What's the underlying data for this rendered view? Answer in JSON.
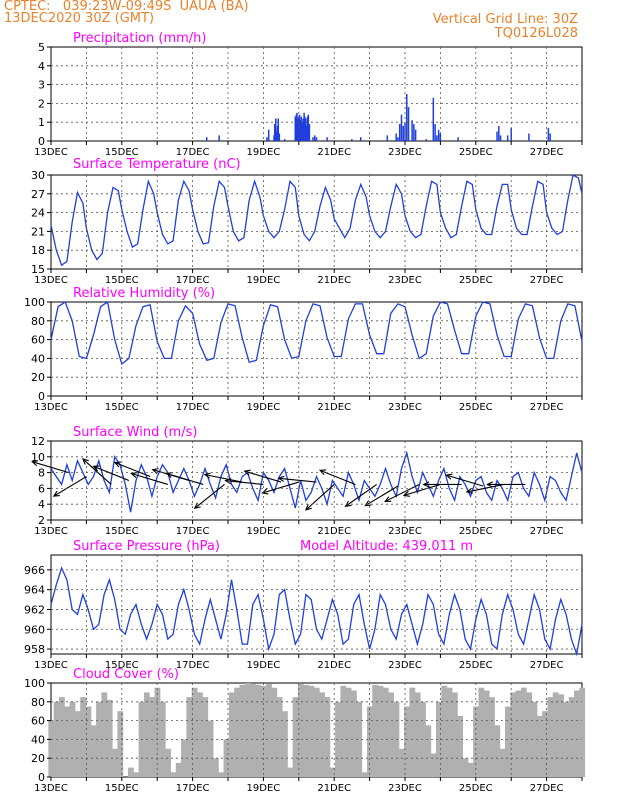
{
  "header": {
    "line1_left": "CPTEC:   039:23W-09:49S  UAUA (BA)",
    "line2_left": "13DEC2020 30Z (GMT)",
    "line1_right": "Vertical Grid Line: 30Z",
    "line2_right": "TQ0126L028"
  },
  "colors": {
    "header": "#e8822a",
    "title": "#ff00ff",
    "series": "#1f3fdf",
    "cloud": "#b0b0b0",
    "arrow": "#000000",
    "grid": "#555555"
  },
  "x_tick_labels": [
    "13DEC",
    "15DEC",
    "17DEC",
    "19DEC",
    "21DEC",
    "23DEC",
    "25DEC",
    "27DEC"
  ],
  "chart_data": [
    {
      "type": "bar",
      "title": "Precipitation (mm/h)",
      "x_unit": "days since 13DEC2020 30Z",
      "xlim": [
        0,
        15
      ],
      "ylim": [
        0,
        5
      ],
      "yticks": [
        0,
        1,
        2,
        3,
        4,
        5
      ],
      "grid": true,
      "x": [
        4.4,
        4.75,
        6.1,
        6.15,
        6.3,
        6.32,
        6.35,
        6.37,
        6.4,
        6.42,
        6.45,
        6.6,
        6.9,
        6.93,
        6.95,
        6.98,
        7.0,
        7.02,
        7.05,
        7.07,
        7.1,
        7.12,
        7.15,
        7.17,
        7.2,
        7.22,
        7.25,
        7.27,
        7.3,
        7.4,
        7.45,
        7.5,
        7.8,
        8.5,
        8.75,
        9.5,
        9.75,
        9.8,
        9.85,
        9.9,
        9.95,
        10.0,
        10.05,
        10.1,
        10.2,
        10.25,
        10.3,
        10.6,
        10.8,
        10.85,
        10.9,
        10.95,
        11.0,
        11.5,
        12.6,
        12.65,
        12.7,
        12.9,
        13.0,
        13.5,
        14.05,
        14.1
      ],
      "values": [
        0.2,
        0.3,
        0.2,
        0.6,
        0.3,
        0.9,
        1.2,
        0.5,
        0.8,
        1.2,
        0.4,
        0.1,
        1.3,
        1.4,
        1.5,
        1.2,
        1.3,
        1.4,
        1.1,
        1.3,
        1.0,
        1.2,
        1.5,
        1.3,
        1.2,
        0.8,
        1.3,
        1.4,
        0.9,
        0.2,
        0.3,
        0.2,
        0.2,
        0.1,
        0.2,
        0.3,
        0.4,
        0.2,
        0.9,
        1.4,
        0.8,
        1.0,
        2.5,
        1.8,
        1.1,
        0.9,
        0.6,
        0.1,
        2.3,
        0.9,
        0.3,
        0.6,
        0.4,
        0.2,
        0.5,
        0.8,
        0.3,
        0.3,
        0.7,
        0.4,
        0.7,
        0.4
      ]
    },
    {
      "type": "line",
      "title": "Surface Temperature (nC)",
      "x_unit": "days since 13DEC2020 30Z",
      "xlim": [
        0,
        15
      ],
      "ylim": [
        15,
        30
      ],
      "yticks": [
        15,
        18,
        21,
        24,
        27,
        30
      ],
      "grid": true,
      "x": [
        0.0,
        0.15,
        0.3,
        0.45,
        0.6,
        0.75,
        0.9,
        1.0,
        1.15,
        1.3,
        1.45,
        1.6,
        1.75,
        1.9,
        2.0,
        2.15,
        2.3,
        2.45,
        2.6,
        2.75,
        2.9,
        3.0,
        3.15,
        3.3,
        3.45,
        3.6,
        3.75,
        3.9,
        4.0,
        4.15,
        4.3,
        4.45,
        4.6,
        4.75,
        4.9,
        5.0,
        5.15,
        5.3,
        5.45,
        5.6,
        5.75,
        5.9,
        6.0,
        6.15,
        6.3,
        6.45,
        6.6,
        6.75,
        6.9,
        7.0,
        7.15,
        7.3,
        7.45,
        7.6,
        7.75,
        7.9,
        8.0,
        8.15,
        8.3,
        8.45,
        8.6,
        8.75,
        8.9,
        9.0,
        9.15,
        9.3,
        9.45,
        9.6,
        9.75,
        9.9,
        10.0,
        10.15,
        10.3,
        10.45,
        10.6,
        10.75,
        10.9,
        11.0,
        11.15,
        11.3,
        11.45,
        11.6,
        11.75,
        11.9,
        12.0,
        12.15,
        12.3,
        12.45,
        12.6,
        12.75,
        12.9,
        13.0,
        13.15,
        13.3,
        13.45,
        13.6,
        13.75,
        13.9,
        14.0,
        14.15,
        14.3,
        14.45,
        14.6,
        14.75,
        14.9,
        15.0
      ],
      "values": [
        22.0,
        18.0,
        15.6,
        16.2,
        22.5,
        27.2,
        25.5,
        21.5,
        18.0,
        16.5,
        17.5,
        24.0,
        28.0,
        27.5,
        24.5,
        21.0,
        18.5,
        19.0,
        24.5,
        29.0,
        27.0,
        24.0,
        20.5,
        19.0,
        19.5,
        26.0,
        29.0,
        27.5,
        24.5,
        21.0,
        19.0,
        19.2,
        25.0,
        29.0,
        28.0,
        25.0,
        21.0,
        19.5,
        20.0,
        26.0,
        29.0,
        26.5,
        23.5,
        21.0,
        20.0,
        21.0,
        24.5,
        29.0,
        28.0,
        23.5,
        20.5,
        19.5,
        21.0,
        25.0,
        28.0,
        26.0,
        23.0,
        21.5,
        20.0,
        21.5,
        26.0,
        28.5,
        26.5,
        23.5,
        21.0,
        20.0,
        21.0,
        25.0,
        28.5,
        27.0,
        23.5,
        21.0,
        20.0,
        20.5,
        25.0,
        29.0,
        28.5,
        24.0,
        21.5,
        20.0,
        20.5,
        25.0,
        29.0,
        28.5,
        24.5,
        21.5,
        20.5,
        20.5,
        25.0,
        28.5,
        28.5,
        24.5,
        21.5,
        20.5,
        20.5,
        25.0,
        29.0,
        28.5,
        24.0,
        21.5,
        20.5,
        21.0,
        26.0,
        30.0,
        29.5,
        27.0
      ]
    },
    {
      "type": "line",
      "title": "Relative Humidity (%)",
      "x_unit": "days since 13DEC2020 30Z",
      "xlim": [
        0,
        15
      ],
      "ylim": [
        0,
        100
      ],
      "yticks": [
        0,
        20,
        40,
        60,
        80,
        100
      ],
      "grid": true,
      "x": [
        0.0,
        0.2,
        0.4,
        0.6,
        0.8,
        1.0,
        1.2,
        1.4,
        1.6,
        1.8,
        2.0,
        2.2,
        2.4,
        2.6,
        2.8,
        3.0,
        3.2,
        3.4,
        3.6,
        3.8,
        4.0,
        4.2,
        4.4,
        4.6,
        4.8,
        5.0,
        5.2,
        5.4,
        5.6,
        5.8,
        6.0,
        6.2,
        6.4,
        6.6,
        6.8,
        7.0,
        7.2,
        7.4,
        7.6,
        7.8,
        8.0,
        8.2,
        8.4,
        8.6,
        8.8,
        9.0,
        9.2,
        9.4,
        9.6,
        9.8,
        10.0,
        10.2,
        10.4,
        10.6,
        10.8,
        11.0,
        11.2,
        11.4,
        11.6,
        11.8,
        12.0,
        12.2,
        12.4,
        12.6,
        12.8,
        13.0,
        13.2,
        13.4,
        13.6,
        13.8,
        14.0,
        14.2,
        14.4,
        14.6,
        14.8,
        15.0
      ],
      "values": [
        60,
        95,
        100,
        80,
        42,
        40,
        65,
        95,
        100,
        60,
        34,
        40,
        75,
        95,
        97,
        58,
        40,
        40,
        80,
        96,
        88,
        55,
        38,
        40,
        78,
        98,
        96,
        62,
        36,
        38,
        75,
        97,
        95,
        60,
        40,
        42,
        80,
        98,
        96,
        62,
        42,
        42,
        82,
        98,
        98,
        65,
        45,
        45,
        88,
        98,
        95,
        65,
        40,
        45,
        85,
        100,
        98,
        70,
        45,
        45,
        85,
        100,
        98,
        65,
        42,
        42,
        82,
        98,
        96,
        62,
        40,
        40,
        80,
        98,
        96,
        58
      ]
    },
    {
      "type": "line",
      "title": "Surface Wind (m/s)",
      "x_unit": "days since 13DEC2020 30Z",
      "xlim": [
        0,
        15
      ],
      "ylim": [
        2,
        12
      ],
      "yticks": [
        2,
        4,
        6,
        8,
        10,
        12
      ],
      "grid": true,
      "x": [
        0.0,
        0.15,
        0.3,
        0.45,
        0.6,
        0.75,
        0.9,
        1.05,
        1.2,
        1.35,
        1.5,
        1.65,
        1.8,
        1.95,
        2.1,
        2.25,
        2.4,
        2.55,
        2.7,
        2.85,
        3.0,
        3.15,
        3.3,
        3.45,
        3.6,
        3.75,
        3.9,
        4.05,
        4.2,
        4.35,
        4.5,
        4.65,
        4.8,
        4.95,
        5.1,
        5.25,
        5.4,
        5.55,
        5.7,
        5.85,
        6.0,
        6.15,
        6.3,
        6.45,
        6.6,
        6.75,
        6.9,
        7.05,
        7.2,
        7.35,
        7.5,
        7.65,
        7.8,
        7.95,
        8.1,
        8.25,
        8.4,
        8.55,
        8.7,
        8.85,
        9.0,
        9.15,
        9.3,
        9.45,
        9.6,
        9.75,
        9.9,
        10.05,
        10.2,
        10.35,
        10.5,
        10.65,
        10.8,
        10.95,
        11.1,
        11.25,
        11.4,
        11.55,
        11.7,
        11.85,
        12.0,
        12.15,
        12.3,
        12.45,
        12.6,
        12.75,
        12.9,
        13.05,
        13.2,
        13.35,
        13.5,
        13.65,
        13.8,
        13.95,
        14.1,
        14.25,
        14.4,
        14.55,
        14.7,
        14.85,
        15.0
      ],
      "values": [
        8.5,
        7.5,
        6.5,
        9.0,
        7.0,
        9.5,
        8.0,
        6.5,
        7.5,
        9.5,
        7.0,
        5.5,
        10.0,
        9.0,
        6.5,
        3.0,
        7.0,
        9.0,
        7.5,
        5.0,
        7.5,
        9.0,
        8.0,
        5.5,
        7.0,
        8.5,
        7.0,
        5.0,
        6.5,
        8.5,
        6.5,
        4.8,
        7.5,
        9.0,
        6.5,
        5.5,
        7.5,
        8.0,
        6.0,
        4.5,
        8.0,
        7.0,
        5.5,
        7.5,
        8.5,
        6.0,
        3.5,
        7.0,
        4.5,
        5.5,
        7.5,
        6.0,
        4.0,
        7.0,
        6.0,
        5.0,
        8.0,
        6.5,
        4.5,
        7.0,
        6.0,
        5.0,
        6.5,
        8.5,
        6.5,
        5.0,
        8.5,
        10.5,
        7.5,
        5.5,
        8.0,
        6.5,
        5.0,
        7.0,
        8.5,
        6.0,
        4.5,
        7.5,
        6.5,
        5.0,
        7.0,
        7.5,
        5.5,
        4.5,
        7.0,
        6.0,
        4.5,
        7.5,
        8.0,
        6.0,
        5.0,
        8.0,
        6.5,
        4.5,
        7.5,
        7.0,
        5.5,
        4.5,
        7.5,
        10.5,
        8.0
      ],
      "arrows": {
        "x": [
          0.5,
          1.0,
          1.7,
          2.2,
          2.8,
          3.3,
          3.9,
          4.3,
          4.9,
          5.4,
          6.0,
          6.5,
          7.0,
          7.5,
          8.0,
          8.6,
          9.2,
          9.8,
          10.4,
          11.0,
          11.6,
          12.2,
          12.8,
          13.4
        ],
        "y": [
          8.0,
          7.5,
          6.5,
          7.0,
          7.5,
          6.5,
          7.0,
          6.5,
          6.5,
          6.8,
          6.5,
          6.8,
          6.8,
          6.8,
          6.5,
          6.5,
          6.5,
          6.3,
          6.5,
          6.5,
          6.5,
          6.3,
          6.5,
          6.5
        ],
        "u": [
          -1,
          -1,
          -1,
          -1,
          -1,
          -1,
          -1,
          -1,
          -1,
          -1,
          -1,
          -1,
          -1,
          -1,
          -1,
          -1,
          -1,
          -1,
          -1,
          -1,
          -1,
          -1,
          -1,
          -1
        ],
        "v": [
          0.3,
          -0.6,
          0.9,
          0.4,
          0.4,
          0.3,
          0.3,
          0.3,
          -0.8,
          0.2,
          0.1,
          0.3,
          -0.3,
          0.1,
          -0.9,
          0.4,
          -0.7,
          -0.6,
          -0.5,
          -0.3,
          0.0,
          0.3,
          -0.2,
          0.0
        ]
      }
    },
    {
      "type": "line",
      "title": "Surface Pressure (hPa)",
      "subtitle": "Model Altitude: 439.011  m",
      "x_unit": "days since 13DEC2020 30Z",
      "xlim": [
        0,
        15
      ],
      "ylim": [
        957.5,
        967.5
      ],
      "yticks": [
        958,
        960,
        962,
        964,
        966
      ],
      "grid": true,
      "x": [
        0.0,
        0.15,
        0.3,
        0.45,
        0.6,
        0.75,
        0.9,
        1.05,
        1.2,
        1.35,
        1.5,
        1.65,
        1.8,
        1.95,
        2.1,
        2.25,
        2.4,
        2.55,
        2.7,
        2.85,
        3.0,
        3.15,
        3.3,
        3.45,
        3.6,
        3.75,
        3.9,
        4.05,
        4.2,
        4.35,
        4.5,
        4.65,
        4.8,
        4.95,
        5.1,
        5.25,
        5.4,
        5.55,
        5.7,
        5.85,
        6.0,
        6.15,
        6.3,
        6.45,
        6.6,
        6.75,
        6.9,
        7.05,
        7.2,
        7.35,
        7.5,
        7.65,
        7.8,
        7.95,
        8.1,
        8.25,
        8.4,
        8.55,
        8.7,
        8.85,
        9.0,
        9.15,
        9.3,
        9.45,
        9.6,
        9.75,
        9.9,
        10.05,
        10.2,
        10.35,
        10.5,
        10.65,
        10.8,
        10.95,
        11.1,
        11.25,
        11.4,
        11.55,
        11.7,
        11.85,
        12.0,
        12.15,
        12.3,
        12.45,
        12.6,
        12.75,
        12.9,
        13.05,
        13.2,
        13.35,
        13.5,
        13.65,
        13.8,
        13.95,
        14.1,
        14.25,
        14.4,
        14.55,
        14.7,
        14.85,
        15.0
      ],
      "values": [
        962.5,
        964.5,
        966.2,
        965.0,
        962.0,
        961.5,
        963.5,
        962.0,
        960.0,
        960.5,
        963.5,
        965.0,
        963.0,
        960.0,
        959.5,
        961.5,
        962.5,
        960.5,
        959.0,
        960.5,
        962.5,
        961.5,
        959.0,
        959.5,
        962.5,
        964.0,
        962.0,
        959.5,
        958.5,
        961.0,
        963.0,
        961.0,
        959.0,
        961.5,
        965.0,
        962.0,
        958.5,
        958.5,
        962.5,
        963.5,
        961.0,
        958.0,
        959.5,
        963.5,
        964.0,
        961.0,
        958.5,
        959.5,
        963.5,
        963.0,
        960.0,
        959.0,
        961.0,
        963.0,
        961.5,
        958.5,
        959.0,
        962.5,
        963.5,
        960.5,
        958.0,
        960.0,
        963.5,
        962.5,
        960.0,
        959.0,
        961.5,
        962.5,
        960.5,
        958.5,
        960.5,
        963.5,
        962.5,
        959.5,
        958.5,
        961.5,
        963.5,
        962.0,
        959.0,
        958.0,
        961.0,
        963.0,
        961.5,
        958.5,
        958.0,
        961.5,
        963.5,
        962.0,
        959.5,
        958.5,
        961.0,
        963.5,
        962.0,
        959.0,
        958.0,
        961.0,
        963.0,
        961.5,
        959.0,
        956.5,
        960.5
      ]
    },
    {
      "type": "area",
      "title": "Cloud Cover (%)",
      "x_unit": "days since 13DEC2020 30Z",
      "xlim": [
        0,
        15
      ],
      "ylim": [
        0,
        100
      ],
      "yticks": [
        0,
        20,
        40,
        60,
        80,
        100
      ],
      "grid": true,
      "x": [
        0.0,
        0.15,
        0.3,
        0.45,
        0.6,
        0.75,
        0.9,
        1.05,
        1.2,
        1.35,
        1.5,
        1.65,
        1.8,
        1.95,
        2.1,
        2.25,
        2.4,
        2.55,
        2.7,
        2.85,
        3.0,
        3.15,
        3.3,
        3.45,
        3.6,
        3.75,
        3.9,
        4.05,
        4.2,
        4.35,
        4.5,
        4.65,
        4.8,
        4.95,
        5.1,
        5.25,
        5.4,
        5.55,
        5.7,
        5.85,
        6.0,
        6.15,
        6.3,
        6.45,
        6.6,
        6.75,
        6.9,
        7.05,
        7.2,
        7.35,
        7.5,
        7.65,
        7.8,
        7.95,
        8.1,
        8.25,
        8.4,
        8.55,
        8.7,
        8.85,
        9.0,
        9.15,
        9.3,
        9.45,
        9.6,
        9.75,
        9.9,
        10.05,
        10.2,
        10.35,
        10.5,
        10.65,
        10.8,
        10.95,
        11.1,
        11.25,
        11.4,
        11.55,
        11.7,
        11.85,
        12.0,
        12.15,
        12.3,
        12.45,
        12.6,
        12.75,
        12.9,
        13.05,
        13.2,
        13.35,
        13.5,
        13.65,
        13.8,
        13.95,
        14.1,
        14.25,
        14.4,
        14.55,
        14.7,
        14.85,
        15.0
      ],
      "values": [
        60,
        80,
        85,
        75,
        80,
        70,
        85,
        75,
        55,
        80,
        90,
        82,
        30,
        70,
        0,
        10,
        5,
        80,
        90,
        85,
        95,
        80,
        30,
        5,
        15,
        40,
        85,
        95,
        90,
        85,
        60,
        20,
        5,
        40,
        90,
        95,
        98,
        100,
        99,
        98,
        97,
        99,
        95,
        85,
        70,
        10,
        85,
        99,
        98,
        97,
        95,
        90,
        85,
        10,
        80,
        97,
        95,
        92,
        80,
        5,
        75,
        98,
        97,
        95,
        90,
        80,
        30,
        75,
        95,
        90,
        80,
        55,
        25,
        80,
        97,
        95,
        90,
        65,
        20,
        15,
        75,
        95,
        92,
        85,
        55,
        30,
        75,
        90,
        92,
        95,
        90,
        80,
        65,
        70,
        85,
        90,
        88,
        80,
        85,
        92,
        95
      ]
    }
  ]
}
